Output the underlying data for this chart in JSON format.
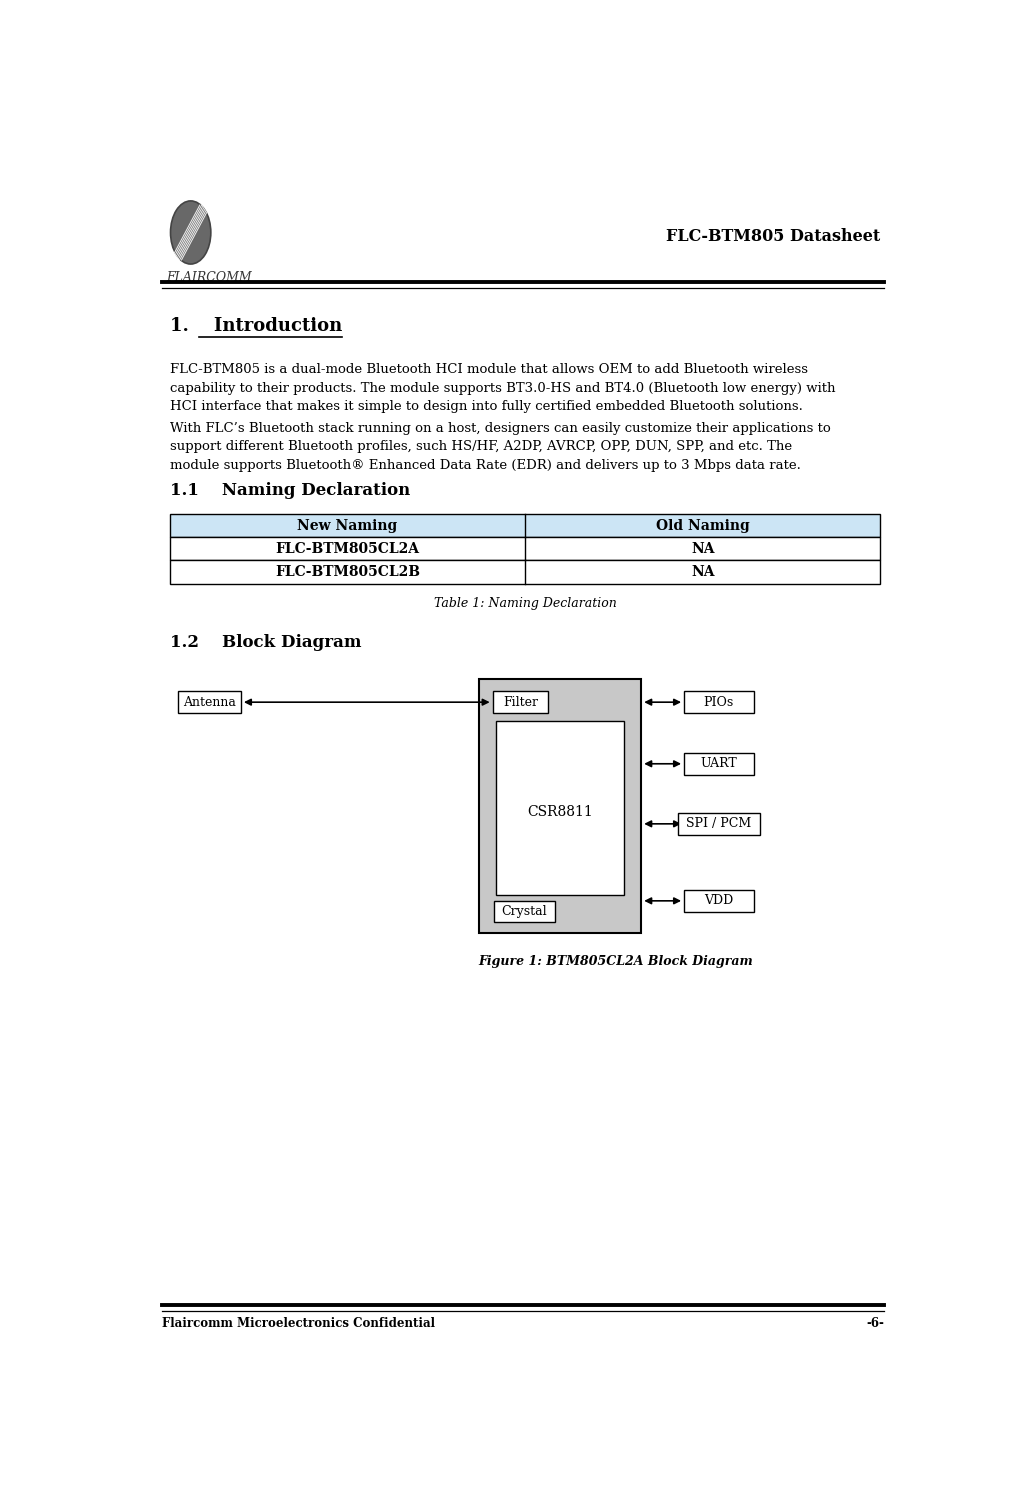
{
  "page_width": 10.17,
  "page_height": 15.01,
  "bg_color": "#ffffff",
  "header_title": "FLC-BTM805 Datasheet",
  "footer_left": "Flaircomm Microelectronics Confidential",
  "footer_right": "-6-",
  "section1_title": "1.    Introduction",
  "section1_para1": "FLC-BTM805 is a dual-mode Bluetooth HCI module that allows OEM to add Bluetooth wireless\ncapability to their products. The module supports BT3.0-HS and BT4.0 (Bluetooth low energy) with\nHCI interface that makes it simple to design into fully certified embedded Bluetooth solutions.",
  "section1_para2": "With FLC’s Bluetooth stack running on a host, designers can easily customize their applications to\nsupport different Bluetooth profiles, such HS/HF, A2DP, AVRCP, OPP, DUN, SPP, and etc. The\nmodule supports Bluetooth® Enhanced Data Rate (EDR) and delivers up to 3 Mbps data rate.",
  "section11_title": "1.1    Naming Declaration",
  "table_header": [
    "New Naming",
    "Old Naming"
  ],
  "table_rows": [
    [
      "FLC-BTM805CL2A",
      "NA"
    ],
    [
      "FLC-BTM805CL2B",
      "NA"
    ]
  ],
  "table_caption": "Table 1: Naming Declaration",
  "table_header_bg": "#cce5f5",
  "section12_title": "1.2    Block Diagram",
  "diagram_caption": "Figure 1: BTM805CL2A Block Diagram",
  "logo_color": "#666666",
  "logo_text": "FLAIRCOMM",
  "box_filter": "Filter",
  "box_csr": "CSR8811",
  "box_crystal": "Crystal",
  "box_antenna": "Antenna",
  "box_pios": "PIOs",
  "box_uart": "UART",
  "box_spi": "SPI / PCM",
  "box_vdd": "VDD"
}
